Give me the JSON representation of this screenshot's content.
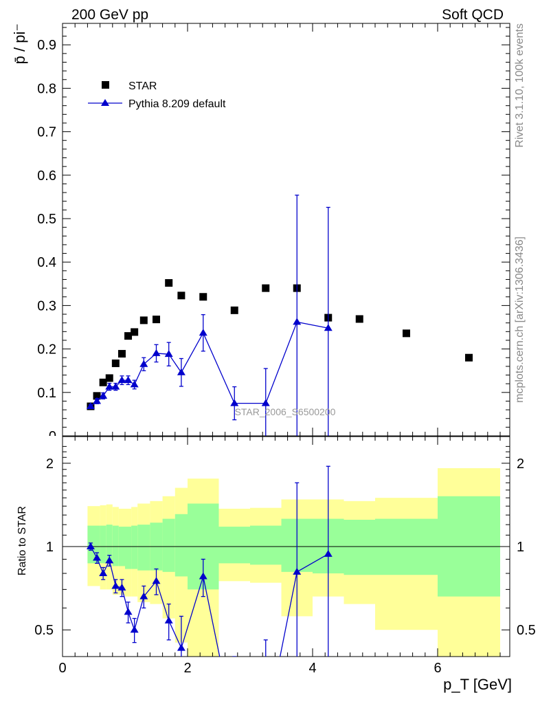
{
  "header": {
    "energy_label": "200 GeV pp",
    "category_label": "Soft QCD"
  },
  "side": {
    "rivet_label": "Rivet 3.1.10,  100k events",
    "mcplots_label": "mcplots.cern.ch [arXiv:1306.3436]"
  },
  "watermark": "STAR_2006_S6500200",
  "colors": {
    "data": "#000000",
    "mc": "#0000cc",
    "band_inner": "#99ff99",
    "band_outer": "#ffff99"
  },
  "chart_data": [
    {
      "type": "scatter",
      "panel": "main",
      "ylabel": "p̄ / pi⁻",
      "xlim": [
        0,
        7.2
      ],
      "ylim": [
        0,
        0.95
      ],
      "yticks": [
        "0.1",
        "0.2",
        "0.3",
        "0.4",
        "0.5",
        "0.6",
        "0.7",
        "0.8",
        "0.9"
      ],
      "grid": false,
      "legend_position": "top-left",
      "series": [
        {
          "name": "STAR",
          "marker": "square",
          "x": [
            0.45,
            0.55,
            0.65,
            0.75,
            0.85,
            0.95,
            1.05,
            1.15,
            1.3,
            1.5,
            1.7,
            1.9,
            2.25,
            2.75,
            3.25,
            3.75,
            4.25,
            4.75,
            5.5,
            6.5
          ],
          "y": [
            0.068,
            0.092,
            0.123,
            0.133,
            0.167,
            0.189,
            0.23,
            0.239,
            0.266,
            0.268,
            0.352,
            0.323,
            0.32,
            0.289,
            0.34,
            0.34,
            0.272,
            0.269,
            0.236,
            0.18
          ]
        },
        {
          "name": "Pythia 8.209 default",
          "marker": "triangle",
          "x": [
            0.45,
            0.55,
            0.65,
            0.75,
            0.85,
            0.95,
            1.05,
            1.15,
            1.3,
            1.5,
            1.7,
            1.9,
            2.25,
            2.75,
            3.25,
            3.75,
            4.25
          ],
          "y": [
            0.068,
            0.08,
            0.092,
            0.113,
            0.113,
            0.128,
            0.128,
            0.118,
            0.165,
            0.19,
            0.188,
            0.146,
            0.237,
            0.075,
            0.075,
            0.262,
            0.248
          ],
          "err": [
            0.004,
            0.006,
            0.007,
            0.008,
            0.008,
            0.01,
            0.01,
            0.01,
            0.015,
            0.02,
            0.027,
            0.032,
            0.042,
            0.038,
            0.08,
            0.292,
            0.278
          ]
        }
      ]
    },
    {
      "type": "line",
      "panel": "ratio",
      "ylabel": "Ratio to STAR",
      "xlabel": "p_T [GeV]",
      "xlim": [
        0,
        7.2
      ],
      "ylim": [
        0.35,
        2.35
      ],
      "xticks": [
        "0",
        "2",
        "4",
        "6"
      ],
      "yticks": [
        "0.5",
        "1",
        "2"
      ],
      "bands": {
        "edges": [
          0.4,
          0.5,
          0.6,
          0.7,
          0.8,
          0.9,
          1.0,
          1.1,
          1.2,
          1.4,
          1.6,
          1.8,
          2.0,
          2.5,
          3.0,
          3.5,
          4.0,
          4.5,
          5.0,
          6.0,
          7.0
        ],
        "inner_lo": [
          0.87,
          0.87,
          0.87,
          0.87,
          0.85,
          0.85,
          0.83,
          0.83,
          0.82,
          0.82,
          0.81,
          0.78,
          0.7,
          0.87,
          0.86,
          0.81,
          0.8,
          0.79,
          0.79,
          0.66
        ],
        "inner_hi": [
          1.19,
          1.19,
          1.19,
          1.2,
          1.19,
          1.18,
          1.18,
          1.19,
          1.2,
          1.22,
          1.26,
          1.31,
          1.43,
          1.18,
          1.19,
          1.26,
          1.26,
          1.25,
          1.26,
          1.52
        ],
        "outer_lo": [
          0.72,
          0.72,
          0.7,
          0.7,
          0.67,
          0.67,
          0.66,
          0.66,
          0.63,
          0.62,
          0.55,
          0.45,
          0.2,
          0.75,
          0.74,
          0.56,
          0.66,
          0.62,
          0.5,
          0.2
        ],
        "outer_hi": [
          1.4,
          1.4,
          1.41,
          1.42,
          1.39,
          1.37,
          1.37,
          1.39,
          1.43,
          1.46,
          1.52,
          1.63,
          1.76,
          1.37,
          1.38,
          1.48,
          1.48,
          1.46,
          1.5,
          1.92
        ]
      },
      "series": [
        {
          "name": "Pythia 8.209 default",
          "marker": "triangle",
          "x": [
            0.45,
            0.55,
            0.65,
            0.75,
            0.85,
            0.95,
            1.05,
            1.15,
            1.3,
            1.5,
            1.7,
            1.9,
            2.25,
            2.75,
            3.25,
            3.75,
            4.25
          ],
          "y": [
            1.0,
            0.91,
            0.8,
            0.89,
            0.72,
            0.71,
            0.58,
            0.5,
            0.66,
            0.75,
            0.54,
            0.43,
            0.78,
            0.22,
            0.22,
            0.81,
            0.94
          ],
          "err": [
            0.03,
            0.04,
            0.04,
            0.04,
            0.04,
            0.05,
            0.05,
            0.05,
            0.06,
            0.08,
            0.08,
            0.13,
            0.12,
            0.13,
            0.24,
            0.89,
            1.01
          ]
        }
      ]
    }
  ]
}
